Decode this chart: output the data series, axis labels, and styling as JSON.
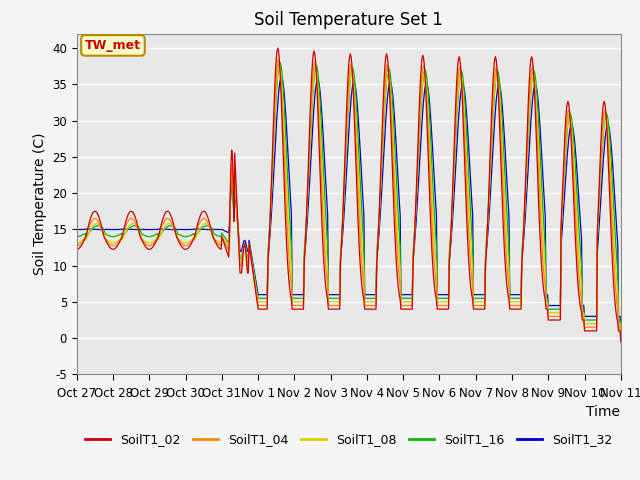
{
  "title": "Soil Temperature Set 1",
  "xlabel": "Time",
  "ylabel": "Soil Temperature (C)",
  "ylim": [
    -5,
    42
  ],
  "yticks": [
    -5,
    0,
    5,
    10,
    15,
    20,
    25,
    30,
    35,
    40
  ],
  "background_color": "#e8e8e8",
  "plot_bg_color": "#e8e8e8",
  "legend_entries": [
    "SoilT1_02",
    "SoilT1_04",
    "SoilT1_08",
    "SoilT1_16",
    "SoilT1_32"
  ],
  "line_colors": [
    "#cc0000",
    "#ff8800",
    "#ddcc00",
    "#00bb00",
    "#0000cc"
  ],
  "annotation_text": "TW_met",
  "annotation_color": "#cc0000",
  "annotation_bg": "#ffffcc",
  "annotation_border": "#bb8800",
  "x_tick_labels": [
    "Oct 27",
    "Oct 28",
    "Oct 29",
    "Oct 30",
    "Oct 31",
    "Nov 1",
    "Nov 2",
    "Nov 3",
    "Nov 4",
    "Nov 5",
    "Nov 6",
    "Nov 7",
    "Nov 8",
    "Nov 9",
    "Nov 10",
    "Nov 11"
  ],
  "grid_color": "#ffffff",
  "title_fontsize": 12,
  "label_fontsize": 10,
  "tick_fontsize": 8.5,
  "legend_fontsize": 9,
  "figsize": [
    6.4,
    4.8
  ],
  "dpi": 100
}
